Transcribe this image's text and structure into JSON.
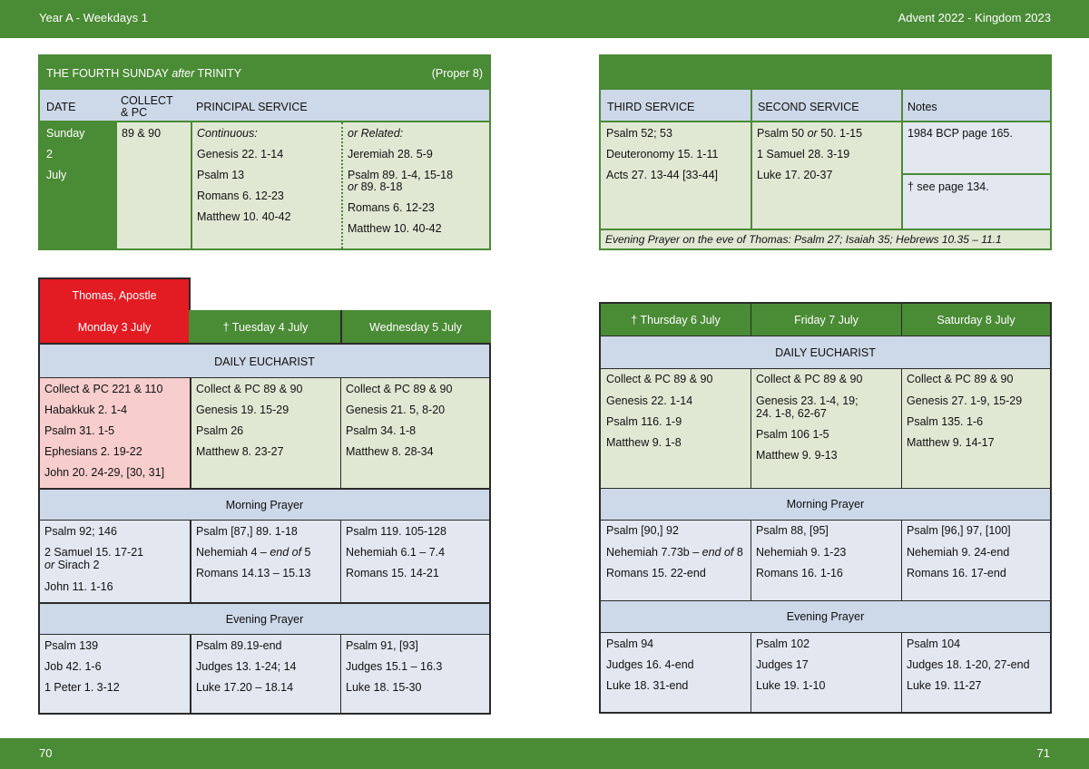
{
  "header": {
    "left": "Year A - Weekdays 1",
    "right": "Advent  2022 - Kingdom 2023"
  },
  "footer": {
    "left_page": "70",
    "right_page": "71"
  },
  "sunday": {
    "title": "THE FOURTH SUNDAY ",
    "title_italic": "after",
    "title_end": " TRINITY",
    "proper": "(Proper 8)",
    "col_date": "DATE",
    "col_collect_1": "COLLECT",
    "col_collect_2": "& PC",
    "col_principal": "PRINCIPAL SERVICE",
    "date_1": "Sunday",
    "date_2": "2",
    "date_3": "July",
    "collect": "89 & 90",
    "continuous_label": "Continuous:",
    "continuous": [
      "Genesis 22. 1-14",
      "Psalm 13",
      "Romans 6. 12-23",
      "Matthew 10. 40-42"
    ],
    "related_label": "or Related:",
    "related_1": "Jeremiah 28. 5-9",
    "related_2": "Psalm 89. 1-4, 15-18",
    "related_2b_or": "or",
    "related_2b": "  89. 8-18",
    "related_3": "Romans 6. 12-23",
    "related_4": "Matthew 10. 40-42"
  },
  "services": {
    "col_third": "THIRD SERVICE",
    "col_second": "SECOND SERVICE",
    "col_notes": "Notes",
    "third": [
      "Psalm 52; 53",
      "Deuteronomy 15. 1-11",
      "Acts 27. 13-44 [33-44]"
    ],
    "second_1a": "Psalm 50 ",
    "second_1or": "or",
    "second_1b": "  50. 1-15",
    "second_2": "1 Samuel 28. 3-19",
    "second_3": "Luke 17. 20-37",
    "note_1": "1984 BCP page 165.",
    "note_2": "†  see page 134.",
    "evening_eve": "Evening Prayer on the eve of Thomas: Psalm 27;  Isaiah 35;  Hebrews 10.35 – 11.1"
  },
  "left_week": {
    "feast": "Thomas, Apostle",
    "days": [
      "Monday 3 July",
      "†  Tuesday 4 July",
      "Wednesday 5 July"
    ],
    "eucharist_label": "DAILY EUCHARIST",
    "eucharist": [
      [
        "Collect & PC 221 & 110",
        "Habakkuk 2. 1-4",
        "Psalm 31. 1-5",
        "Ephesians 2. 19-22",
        "John 20. 24-29, [30, 31]"
      ],
      [
        "Collect & PC 89 & 90",
        "Genesis 19. 15-29",
        "Psalm 26",
        "Matthew 8. 23-27"
      ],
      [
        "Collect & PC 89 & 90",
        "Genesis 21. 5, 8-20",
        "Psalm 34. 1-8",
        "Matthew 8. 28-34"
      ]
    ],
    "morning_label": "Morning Prayer",
    "morning_mon_1": "Psalm 92; 146",
    "morning_mon_2": "2 Samuel 15. 17-21",
    "morning_mon_3or": "or",
    "morning_mon_3": " Sirach 2",
    "morning_mon_4": "John 11. 1-16",
    "morning_tue_1": "Psalm [87,] 89. 1-18",
    "morning_tue_2": "Nehemiah 4 – ",
    "morning_tue_2i": "end of",
    "morning_tue_2e": " 5",
    "morning_tue_3": "Romans 14.13 – 15.13",
    "morning_wed": [
      "Psalm 119. 105-128",
      "Nehemiah 6.1 – 7.4",
      "Romans 15. 14-21"
    ],
    "evening_label": "Evening Prayer",
    "evening": [
      [
        "Psalm 139",
        "Job 42. 1-6",
        "1 Peter 1. 3-12"
      ],
      [
        "Psalm 89.19-end",
        "Judges 13. 1-24; 14",
        "Luke 17.20 – 18.14"
      ],
      [
        "Psalm 91, [93]",
        "Judges 15.1 – 16.3",
        "Luke 18. 15-30"
      ]
    ]
  },
  "right_week": {
    "days": [
      "†  Thursday 6 July",
      "Friday 7 July",
      "Saturday 8 July"
    ],
    "eucharist_label": "DAILY EUCHARIST",
    "eucharist_thu": [
      "Collect & PC 89 & 90",
      "Genesis 22. 1-14",
      "Psalm 116. 1-9",
      "Matthew 9. 1-8"
    ],
    "eucharist_fri_1": "Collect & PC 89 & 90",
    "eucharist_fri_2": "Genesis 23. 1-4, 19;",
    "eucharist_fri_2b": "24. 1-8, 62-67",
    "eucharist_fri_3": "Psalm 106 1-5",
    "eucharist_fri_4": "Matthew 9. 9-13",
    "eucharist_sat": [
      "Collect & PC 89 & 90",
      "Genesis 27. 1-9, 15-29",
      "Psalm 135. 1-6",
      "Matthew 9. 14-17"
    ],
    "morning_label": "Morning Prayer",
    "morning_thu_1": "Psalm [90,] 92",
    "morning_thu_2": "Nehemiah 7.73b – ",
    "morning_thu_2i": "end of",
    "morning_thu_2e": " 8",
    "morning_thu_3": "Romans 15. 22-end",
    "morning_fri": [
      "Psalm 88, [95]",
      "Nehemiah 9. 1-23",
      "Romans 16. 1-16"
    ],
    "morning_sat": [
      "Psalm [96,] 97, [100]",
      "Nehemiah 9. 24-end",
      "Romans 16. 17-end"
    ],
    "evening_label": "Evening Prayer",
    "evening": [
      [
        "Psalm 94",
        "Judges 16. 4-end",
        "Luke 18. 31-end"
      ],
      [
        "Psalm 102",
        "Judges 17",
        "Luke 19. 1-10"
      ],
      [
        "Psalm 104",
        "Judges 18. 1-20, 27-end",
        "Luke 19. 11-27"
      ]
    ]
  }
}
